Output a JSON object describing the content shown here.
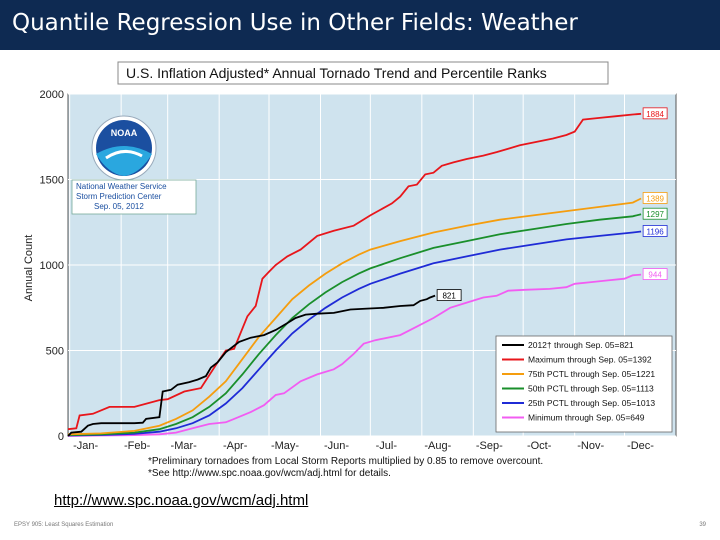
{
  "slide": {
    "title": "Quantile Regression Use in Other Fields: Weather",
    "url": "http://www.spc.noaa.gov/wcm/adj.html",
    "footer_left": "EPSY 905: Least Squares Estimation",
    "footer_right": "39"
  },
  "colors": {
    "header_bg": "#0e2a52",
    "plot_bg": "#cfe3ee",
    "max": "#e8161b",
    "p75": "#f59d0e",
    "p50": "#1a8f2b",
    "p25": "#1f2bd6",
    "min": "#f25cf2",
    "y2012": "#000000"
  },
  "logo": {
    "text": "NOAA",
    "org_line1": "National Weather Service",
    "org_line2": "Storm Prediction Center",
    "org_line3": "Sep. 05, 2012"
  },
  "chart_data": {
    "type": "line",
    "title": "U.S. Inflation Adjusted* Annual Tornado Trend and Percentile Ranks",
    "ylabel": "Annual Count",
    "xlabel": "",
    "ylim": [
      0,
      2000
    ],
    "xlim": [
      0,
      366
    ],
    "yticks": [
      0,
      500,
      1000,
      1500,
      2000
    ],
    "xticks": [
      {
        "label": "-Jan-",
        "day": 1
      },
      {
        "label": "-Feb-",
        "day": 32
      },
      {
        "label": "-Mar-",
        "day": 60
      },
      {
        "label": "-Apr-",
        "day": 91
      },
      {
        "label": "-May-",
        "day": 121
      },
      {
        "label": "-Jun-",
        "day": 152
      },
      {
        "label": "-Jul-",
        "day": 182
      },
      {
        "label": "-Aug-",
        "day": 213
      },
      {
        "label": "-Sep-",
        "day": 244
      },
      {
        "label": "-Oct-",
        "day": 274
      },
      {
        "label": "-Nov-",
        "day": 305
      },
      {
        "label": "-Dec-",
        "day": 335
      }
    ],
    "footnote1": "*Preliminary tornadoes from Local Storm Reports multiplied by 0.85 to remove overcount.",
    "footnote2": "*See http://www.spc.noaa.gov/wcm/adj.html for details.",
    "series": [
      {
        "name": "Maximum",
        "key": "max",
        "legend": "Maximum through Sep. 05=1392",
        "end_label": "1884",
        "points": [
          [
            0,
            40
          ],
          [
            5,
            45
          ],
          [
            7,
            120
          ],
          [
            15,
            130
          ],
          [
            25,
            170
          ],
          [
            40,
            170
          ],
          [
            55,
            210
          ],
          [
            60,
            215
          ],
          [
            70,
            260
          ],
          [
            80,
            280
          ],
          [
            90,
            430
          ],
          [
            95,
            500
          ],
          [
            100,
            510
          ],
          [
            108,
            700
          ],
          [
            113,
            760
          ],
          [
            117,
            920
          ],
          [
            121,
            960
          ],
          [
            125,
            1000
          ],
          [
            132,
            1050
          ],
          [
            140,
            1090
          ],
          [
            150,
            1170
          ],
          [
            160,
            1200
          ],
          [
            172,
            1230
          ],
          [
            182,
            1290
          ],
          [
            195,
            1360
          ],
          [
            200,
            1400
          ],
          [
            205,
            1460
          ],
          [
            210,
            1470
          ],
          [
            215,
            1530
          ],
          [
            220,
            1540
          ],
          [
            225,
            1580
          ],
          [
            232,
            1600
          ],
          [
            240,
            1620
          ],
          [
            250,
            1640
          ],
          [
            258,
            1660
          ],
          [
            265,
            1680
          ],
          [
            272,
            1700
          ],
          [
            282,
            1720
          ],
          [
            292,
            1740
          ],
          [
            300,
            1760
          ],
          [
            305,
            1780
          ],
          [
            310,
            1850
          ],
          [
            320,
            1860
          ],
          [
            330,
            1870
          ],
          [
            340,
            1880
          ],
          [
            345,
            1884
          ]
        ]
      },
      {
        "name": "75th PCTL",
        "key": "p75",
        "legend": "75th PCTL through Sep. 05=1221",
        "end_label": "1389",
        "points": [
          [
            0,
            10
          ],
          [
            20,
            15
          ],
          [
            40,
            30
          ],
          [
            55,
            60
          ],
          [
            65,
            100
          ],
          [
            75,
            150
          ],
          [
            85,
            230
          ],
          [
            95,
            320
          ],
          [
            105,
            450
          ],
          [
            115,
            580
          ],
          [
            125,
            690
          ],
          [
            135,
            800
          ],
          [
            145,
            880
          ],
          [
            155,
            950
          ],
          [
            165,
            1010
          ],
          [
            175,
            1060
          ],
          [
            182,
            1090
          ],
          [
            200,
            1140
          ],
          [
            220,
            1190
          ],
          [
            240,
            1230
          ],
          [
            260,
            1265
          ],
          [
            280,
            1290
          ],
          [
            300,
            1315
          ],
          [
            320,
            1340
          ],
          [
            340,
            1365
          ],
          [
            345,
            1389
          ]
        ]
      },
      {
        "name": "50th PCTL",
        "key": "p50",
        "legend": "50th PCTL through Sep. 05=1113",
        "end_label": "1297",
        "points": [
          [
            0,
            5
          ],
          [
            20,
            10
          ],
          [
            40,
            20
          ],
          [
            55,
            40
          ],
          [
            65,
            70
          ],
          [
            75,
            110
          ],
          [
            85,
            170
          ],
          [
            95,
            250
          ],
          [
            105,
            360
          ],
          [
            115,
            480
          ],
          [
            125,
            590
          ],
          [
            135,
            690
          ],
          [
            145,
            770
          ],
          [
            155,
            840
          ],
          [
            165,
            900
          ],
          [
            175,
            950
          ],
          [
            182,
            980
          ],
          [
            200,
            1040
          ],
          [
            220,
            1100
          ],
          [
            240,
            1140
          ],
          [
            260,
            1180
          ],
          [
            280,
            1210
          ],
          [
            300,
            1240
          ],
          [
            320,
            1265
          ],
          [
            340,
            1285
          ],
          [
            345,
            1297
          ]
        ]
      },
      {
        "name": "25th PCTL",
        "key": "p25",
        "legend": "25th PCTL through Sep. 05=1013",
        "end_label": "1196",
        "points": [
          [
            0,
            3
          ],
          [
            20,
            6
          ],
          [
            40,
            12
          ],
          [
            55,
            25
          ],
          [
            65,
            45
          ],
          [
            75,
            75
          ],
          [
            85,
            120
          ],
          [
            95,
            190
          ],
          [
            105,
            280
          ],
          [
            115,
            390
          ],
          [
            125,
            500
          ],
          [
            135,
            600
          ],
          [
            145,
            680
          ],
          [
            155,
            750
          ],
          [
            165,
            810
          ],
          [
            175,
            860
          ],
          [
            182,
            890
          ],
          [
            200,
            950
          ],
          [
            220,
            1010
          ],
          [
            240,
            1050
          ],
          [
            260,
            1090
          ],
          [
            280,
            1120
          ],
          [
            300,
            1150
          ],
          [
            320,
            1170
          ],
          [
            340,
            1190
          ],
          [
            345,
            1196
          ]
        ]
      },
      {
        "name": "Minimum",
        "key": "min",
        "legend": "Minimum through Sep. 05=649",
        "end_label": "944",
        "points": [
          [
            0,
            0
          ],
          [
            20,
            3
          ],
          [
            40,
            5
          ],
          [
            55,
            10
          ],
          [
            65,
            20
          ],
          [
            75,
            45
          ],
          [
            85,
            70
          ],
          [
            95,
            80
          ],
          [
            100,
            100
          ],
          [
            110,
            140
          ],
          [
            118,
            180
          ],
          [
            125,
            240
          ],
          [
            130,
            250
          ],
          [
            140,
            320
          ],
          [
            150,
            360
          ],
          [
            160,
            390
          ],
          [
            165,
            420
          ],
          [
            172,
            480
          ],
          [
            178,
            540
          ],
          [
            185,
            560
          ],
          [
            200,
            590
          ],
          [
            210,
            640
          ],
          [
            220,
            690
          ],
          [
            230,
            750
          ],
          [
            240,
            780
          ],
          [
            250,
            810
          ],
          [
            258,
            820
          ],
          [
            265,
            850
          ],
          [
            275,
            855
          ],
          [
            290,
            860
          ],
          [
            300,
            870
          ],
          [
            305,
            890
          ],
          [
            315,
            900
          ],
          [
            325,
            910
          ],
          [
            335,
            920
          ],
          [
            340,
            940
          ],
          [
            345,
            944
          ]
        ]
      },
      {
        "name": "2012",
        "key": "y2012",
        "legend": "2012† through Sep. 05=821",
        "end_label": "821",
        "points": [
          [
            0,
            0
          ],
          [
            2,
            20
          ],
          [
            8,
            25
          ],
          [
            12,
            60
          ],
          [
            15,
            70
          ],
          [
            20,
            75
          ],
          [
            40,
            75
          ],
          [
            45,
            78
          ],
          [
            47,
            100
          ],
          [
            55,
            110
          ],
          [
            57,
            260
          ],
          [
            62,
            270
          ],
          [
            66,
            300
          ],
          [
            73,
            315
          ],
          [
            78,
            330
          ],
          [
            83,
            350
          ],
          [
            86,
            400
          ],
          [
            90,
            430
          ],
          [
            95,
            490
          ],
          [
            103,
            550
          ],
          [
            110,
            575
          ],
          [
            118,
            590
          ],
          [
            125,
            620
          ],
          [
            132,
            660
          ],
          [
            137,
            690
          ],
          [
            143,
            710
          ],
          [
            150,
            715
          ],
          [
            160,
            720
          ],
          [
            170,
            740
          ],
          [
            180,
            745
          ],
          [
            190,
            750
          ],
          [
            200,
            760
          ],
          [
            208,
            765
          ],
          [
            212,
            790
          ],
          [
            216,
            800
          ],
          [
            218,
            810
          ],
          [
            221,
            821
          ]
        ]
      }
    ]
  }
}
